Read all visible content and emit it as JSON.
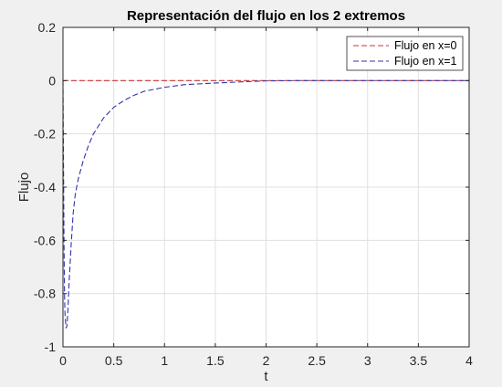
{
  "chart_data": {
    "type": "line",
    "title": "Representación del flujo en los 2 extremos",
    "xlabel": "t",
    "ylabel": "Flujo",
    "xlim": [
      0,
      4
    ],
    "ylim": [
      -1,
      0.2
    ],
    "xticks": [
      0,
      0.5,
      1,
      1.5,
      2,
      2.5,
      3,
      3.5,
      4
    ],
    "xtick_labels": [
      "0",
      "0.5",
      "1",
      "1.5",
      "2",
      "2.5",
      "3",
      "3.5",
      "4"
    ],
    "yticks": [
      0.2,
      0,
      -0.2,
      -0.4,
      -0.6,
      -0.8,
      -1
    ],
    "ytick_labels": [
      "0.2",
      "0",
      "-0.2",
      "-0.4",
      "-0.6",
      "-0.8",
      "-1"
    ],
    "grid": true,
    "legend_position": "top-right",
    "series": [
      {
        "name": "Flujo en x=0",
        "color": "#cc3333",
        "line_style": "dashed",
        "x": [
          0,
          0.5,
          1,
          1.5,
          2,
          2.5,
          3,
          3.5,
          4
        ],
        "y": [
          0,
          0,
          0,
          0,
          0,
          0,
          0,
          0,
          0
        ]
      },
      {
        "name": "Flujo en x=1",
        "color": "#3333aa",
        "line_style": "dashed",
        "x": [
          0,
          0.005,
          0.01,
          0.015,
          0.02,
          0.03,
          0.04,
          0.05,
          0.06,
          0.08,
          0.1,
          0.12,
          0.15,
          0.2,
          0.25,
          0.3,
          0.4,
          0.5,
          0.6,
          0.7,
          0.8,
          1.0,
          1.2,
          1.5,
          1.8,
          2.0,
          2.3,
          2.6,
          3.0,
          3.5,
          4.0
        ],
        "y": [
          0,
          -0.3,
          -0.6,
          -0.8,
          -0.88,
          -0.93,
          -0.92,
          -0.85,
          -0.76,
          -0.62,
          -0.5,
          -0.43,
          -0.37,
          -0.3,
          -0.245,
          -0.2,
          -0.14,
          -0.1,
          -0.075,
          -0.055,
          -0.04,
          -0.025,
          -0.015,
          -0.009,
          -0.004,
          -0.001,
          0,
          0,
          0,
          0,
          0
        ]
      }
    ]
  }
}
